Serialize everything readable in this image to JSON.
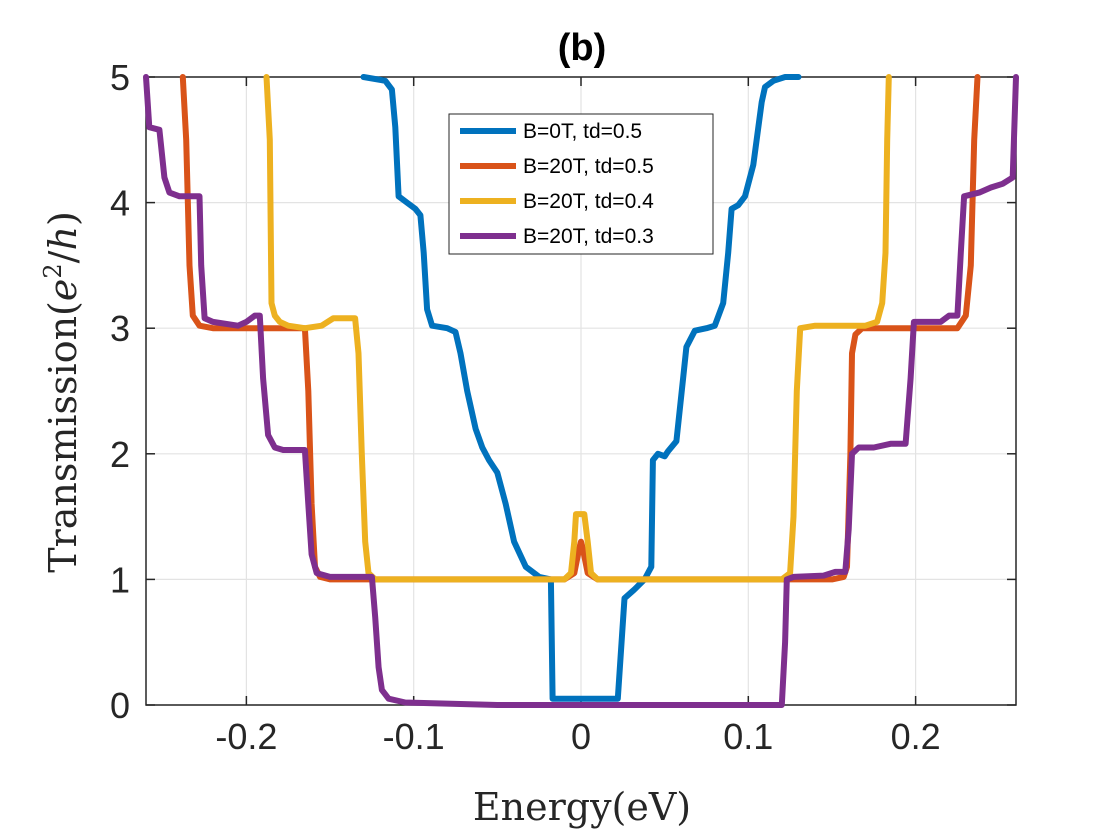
{
  "chart_data": {
    "type": "line",
    "title": "(b)",
    "xlabel": "Energy(eV)",
    "ylabel": "Transmission(e²/h)",
    "ylabel_parts": {
      "pre": "Transmission(",
      "base": "e",
      "sup": "2",
      "post": "/",
      "var": "h",
      "close": ")"
    },
    "xlim": [
      -0.26,
      0.26
    ],
    "ylim": [
      0,
      5
    ],
    "xticks": [
      -0.2,
      -0.1,
      0,
      0.1,
      0.2
    ],
    "xtick_labels": [
      "-0.2",
      "-0.1",
      "0",
      "0.1",
      "0.2"
    ],
    "yticks": [
      0,
      1,
      2,
      3,
      4,
      5
    ],
    "ytick_labels": [
      "0",
      "1",
      "2",
      "3",
      "4",
      "5"
    ],
    "grid": true,
    "legend_position": "top-center",
    "series": [
      {
        "name": "B=0T, td=0.5",
        "color": "#0072BD",
        "points": [
          [
            -0.13,
            5.0
          ],
          [
            -0.117,
            4.97
          ],
          [
            -0.113,
            4.9
          ],
          [
            -0.111,
            4.6
          ],
          [
            -0.109,
            4.05
          ],
          [
            -0.104,
            4.0
          ],
          [
            -0.099,
            3.95
          ],
          [
            -0.096,
            3.9
          ],
          [
            -0.094,
            3.6
          ],
          [
            -0.092,
            3.15
          ],
          [
            -0.089,
            3.02
          ],
          [
            -0.08,
            3.0
          ],
          [
            -0.075,
            2.97
          ],
          [
            -0.072,
            2.8
          ],
          [
            -0.068,
            2.5
          ],
          [
            -0.063,
            2.2
          ],
          [
            -0.059,
            2.05
          ],
          [
            -0.055,
            1.95
          ],
          [
            -0.05,
            1.85
          ],
          [
            -0.045,
            1.6
          ],
          [
            -0.04,
            1.3
          ],
          [
            -0.033,
            1.1
          ],
          [
            -0.025,
            1.02
          ],
          [
            -0.018,
            1.0
          ],
          [
            -0.017,
            0.05
          ],
          [
            0.0,
            0.05
          ],
          [
            0.022,
            0.05
          ],
          [
            0.026,
            0.85
          ],
          [
            0.032,
            0.92
          ],
          [
            0.038,
            1.0
          ],
          [
            0.042,
            1.1
          ],
          [
            0.043,
            1.95
          ],
          [
            0.046,
            2.0
          ],
          [
            0.05,
            1.98
          ],
          [
            0.052,
            2.02
          ],
          [
            0.057,
            2.1
          ],
          [
            0.061,
            2.6
          ],
          [
            0.063,
            2.85
          ],
          [
            0.068,
            2.98
          ],
          [
            0.075,
            3.0
          ],
          [
            0.08,
            3.02
          ],
          [
            0.085,
            3.2
          ],
          [
            0.088,
            3.6
          ],
          [
            0.09,
            3.95
          ],
          [
            0.094,
            3.98
          ],
          [
            0.098,
            4.05
          ],
          [
            0.103,
            4.3
          ],
          [
            0.108,
            4.8
          ],
          [
            0.11,
            4.92
          ],
          [
            0.115,
            4.97
          ],
          [
            0.122,
            5.0
          ],
          [
            0.13,
            5.0
          ]
        ]
      },
      {
        "name": "B=20T, td=0.5",
        "color": "#D95319",
        "points": [
          [
            -0.238,
            5.0
          ],
          [
            -0.236,
            4.5
          ],
          [
            -0.234,
            3.5
          ],
          [
            -0.232,
            3.1
          ],
          [
            -0.228,
            3.02
          ],
          [
            -0.22,
            3.0
          ],
          [
            -0.2,
            3.0
          ],
          [
            -0.18,
            3.0
          ],
          [
            -0.165,
            3.0
          ],
          [
            -0.163,
            2.5
          ],
          [
            -0.161,
            1.6
          ],
          [
            -0.159,
            1.1
          ],
          [
            -0.156,
            1.02
          ],
          [
            -0.15,
            1.0
          ],
          [
            -0.1,
            1.0
          ],
          [
            -0.05,
            1.0
          ],
          [
            -0.01,
            1.0
          ],
          [
            -0.004,
            1.05
          ],
          [
            -0.001,
            1.25
          ],
          [
            0.0,
            1.3
          ],
          [
            0.001,
            1.25
          ],
          [
            0.004,
            1.05
          ],
          [
            0.01,
            1.0
          ],
          [
            0.05,
            1.0
          ],
          [
            0.1,
            1.0
          ],
          [
            0.15,
            1.0
          ],
          [
            0.157,
            1.02
          ],
          [
            0.159,
            1.1
          ],
          [
            0.161,
            2.0
          ],
          [
            0.162,
            2.8
          ],
          [
            0.164,
            2.95
          ],
          [
            0.168,
            3.0
          ],
          [
            0.2,
            3.0
          ],
          [
            0.225,
            3.0
          ],
          [
            0.23,
            3.1
          ],
          [
            0.233,
            3.5
          ],
          [
            0.235,
            4.5
          ],
          [
            0.237,
            5.0
          ]
        ]
      },
      {
        "name": "B=20T, td=0.4",
        "color": "#EDB120",
        "points": [
          [
            -0.188,
            5.0
          ],
          [
            -0.186,
            4.5
          ],
          [
            -0.185,
            3.2
          ],
          [
            -0.183,
            3.1
          ],
          [
            -0.18,
            3.05
          ],
          [
            -0.175,
            3.02
          ],
          [
            -0.165,
            3.0
          ],
          [
            -0.155,
            3.02
          ],
          [
            -0.148,
            3.08
          ],
          [
            -0.135,
            3.08
          ],
          [
            -0.133,
            2.8
          ],
          [
            -0.131,
            2.0
          ],
          [
            -0.129,
            1.3
          ],
          [
            -0.127,
            1.05
          ],
          [
            -0.123,
            1.0
          ],
          [
            -0.1,
            1.0
          ],
          [
            -0.05,
            1.0
          ],
          [
            -0.01,
            1.0
          ],
          [
            -0.006,
            1.05
          ],
          [
            -0.004,
            1.3
          ],
          [
            -0.003,
            1.52
          ],
          [
            0.002,
            1.52
          ],
          [
            0.004,
            1.3
          ],
          [
            0.006,
            1.05
          ],
          [
            0.01,
            1.0
          ],
          [
            0.05,
            1.0
          ],
          [
            0.1,
            1.0
          ],
          [
            0.12,
            1.0
          ],
          [
            0.125,
            1.05
          ],
          [
            0.127,
            1.5
          ],
          [
            0.129,
            2.5
          ],
          [
            0.131,
            3.0
          ],
          [
            0.14,
            3.02
          ],
          [
            0.17,
            3.02
          ],
          [
            0.177,
            3.05
          ],
          [
            0.18,
            3.2
          ],
          [
            0.182,
            3.6
          ],
          [
            0.183,
            4.5
          ],
          [
            0.184,
            5.0
          ]
        ]
      },
      {
        "name": "B=20T, td=0.3",
        "color": "#7E2F8E",
        "points": [
          [
            -0.26,
            5.0
          ],
          [
            -0.258,
            4.6
          ],
          [
            -0.252,
            4.58
          ],
          [
            -0.249,
            4.2
          ],
          [
            -0.246,
            4.08
          ],
          [
            -0.24,
            4.05
          ],
          [
            -0.228,
            4.05
          ],
          [
            -0.227,
            3.5
          ],
          [
            -0.225,
            3.08
          ],
          [
            -0.22,
            3.05
          ],
          [
            -0.205,
            3.02
          ],
          [
            -0.2,
            3.05
          ],
          [
            -0.195,
            3.1
          ],
          [
            -0.192,
            3.1
          ],
          [
            -0.19,
            2.6
          ],
          [
            -0.187,
            2.15
          ],
          [
            -0.183,
            2.05
          ],
          [
            -0.178,
            2.03
          ],
          [
            -0.165,
            2.03
          ],
          [
            -0.163,
            1.6
          ],
          [
            -0.161,
            1.2
          ],
          [
            -0.158,
            1.05
          ],
          [
            -0.15,
            1.02
          ],
          [
            -0.125,
            1.02
          ],
          [
            -0.123,
            0.7
          ],
          [
            -0.121,
            0.3
          ],
          [
            -0.119,
            0.12
          ],
          [
            -0.115,
            0.05
          ],
          [
            -0.105,
            0.02
          ],
          [
            -0.05,
            0.0
          ],
          [
            0.0,
            0.0
          ],
          [
            0.05,
            0.0
          ],
          [
            0.12,
            0.0
          ],
          [
            0.122,
            0.5
          ],
          [
            0.123,
            1.0
          ],
          [
            0.127,
            1.02
          ],
          [
            0.145,
            1.03
          ],
          [
            0.152,
            1.06
          ],
          [
            0.158,
            1.06
          ],
          [
            0.16,
            1.4
          ],
          [
            0.162,
            2.0
          ],
          [
            0.166,
            2.05
          ],
          [
            0.175,
            2.05
          ],
          [
            0.185,
            2.08
          ],
          [
            0.194,
            2.08
          ],
          [
            0.197,
            2.6
          ],
          [
            0.199,
            3.05
          ],
          [
            0.215,
            3.05
          ],
          [
            0.22,
            3.1
          ],
          [
            0.225,
            3.1
          ],
          [
            0.227,
            3.6
          ],
          [
            0.229,
            4.05
          ],
          [
            0.238,
            4.08
          ],
          [
            0.245,
            4.12
          ],
          [
            0.252,
            4.15
          ],
          [
            0.258,
            4.2
          ],
          [
            0.26,
            5.0
          ]
        ]
      }
    ]
  }
}
